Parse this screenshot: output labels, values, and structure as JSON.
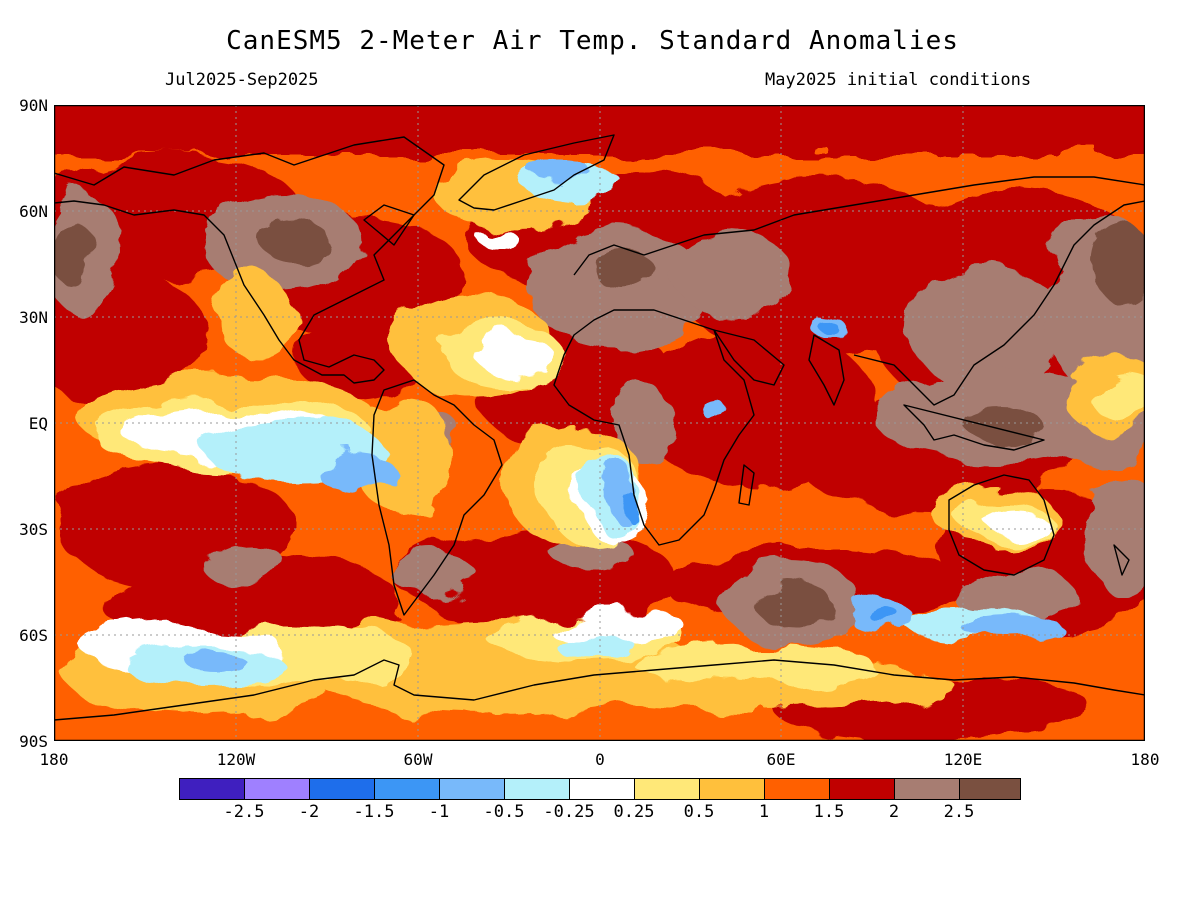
{
  "header": {
    "title": "CanESM5 2-Meter Air Temp. Standard Anomalies",
    "period": "Jul2025-Sep2025",
    "init": "May2025 initial conditions"
  },
  "map": {
    "lat_labels": [
      "90N",
      "60N",
      "30N",
      "EQ",
      "30S",
      "60S",
      "90S"
    ],
    "lon_labels": [
      "180",
      "120W",
      "60W",
      "0",
      "60E",
      "120E",
      "180"
    ],
    "lat_range": [
      -90,
      90
    ],
    "lon_range": [
      -180,
      180
    ],
    "gridlines": "dotted",
    "coastlines": true
  },
  "legend": {
    "colors": [
      "#3f1fbf",
      "#9f80ff",
      "#1e6eeb",
      "#3c96f5",
      "#78b9fa",
      "#b4f0fa",
      "#ffffff",
      "#ffe878",
      "#ffc03c",
      "#ff6000",
      "#c00000",
      "#a77d72",
      "#7a5040"
    ],
    "labels": [
      "-2.5",
      "-2",
      "-1.5",
      "-1",
      "-0.5",
      "-0.25",
      "0.25",
      "0.5",
      "1",
      "1.5",
      "2",
      "2.5"
    ]
  }
}
